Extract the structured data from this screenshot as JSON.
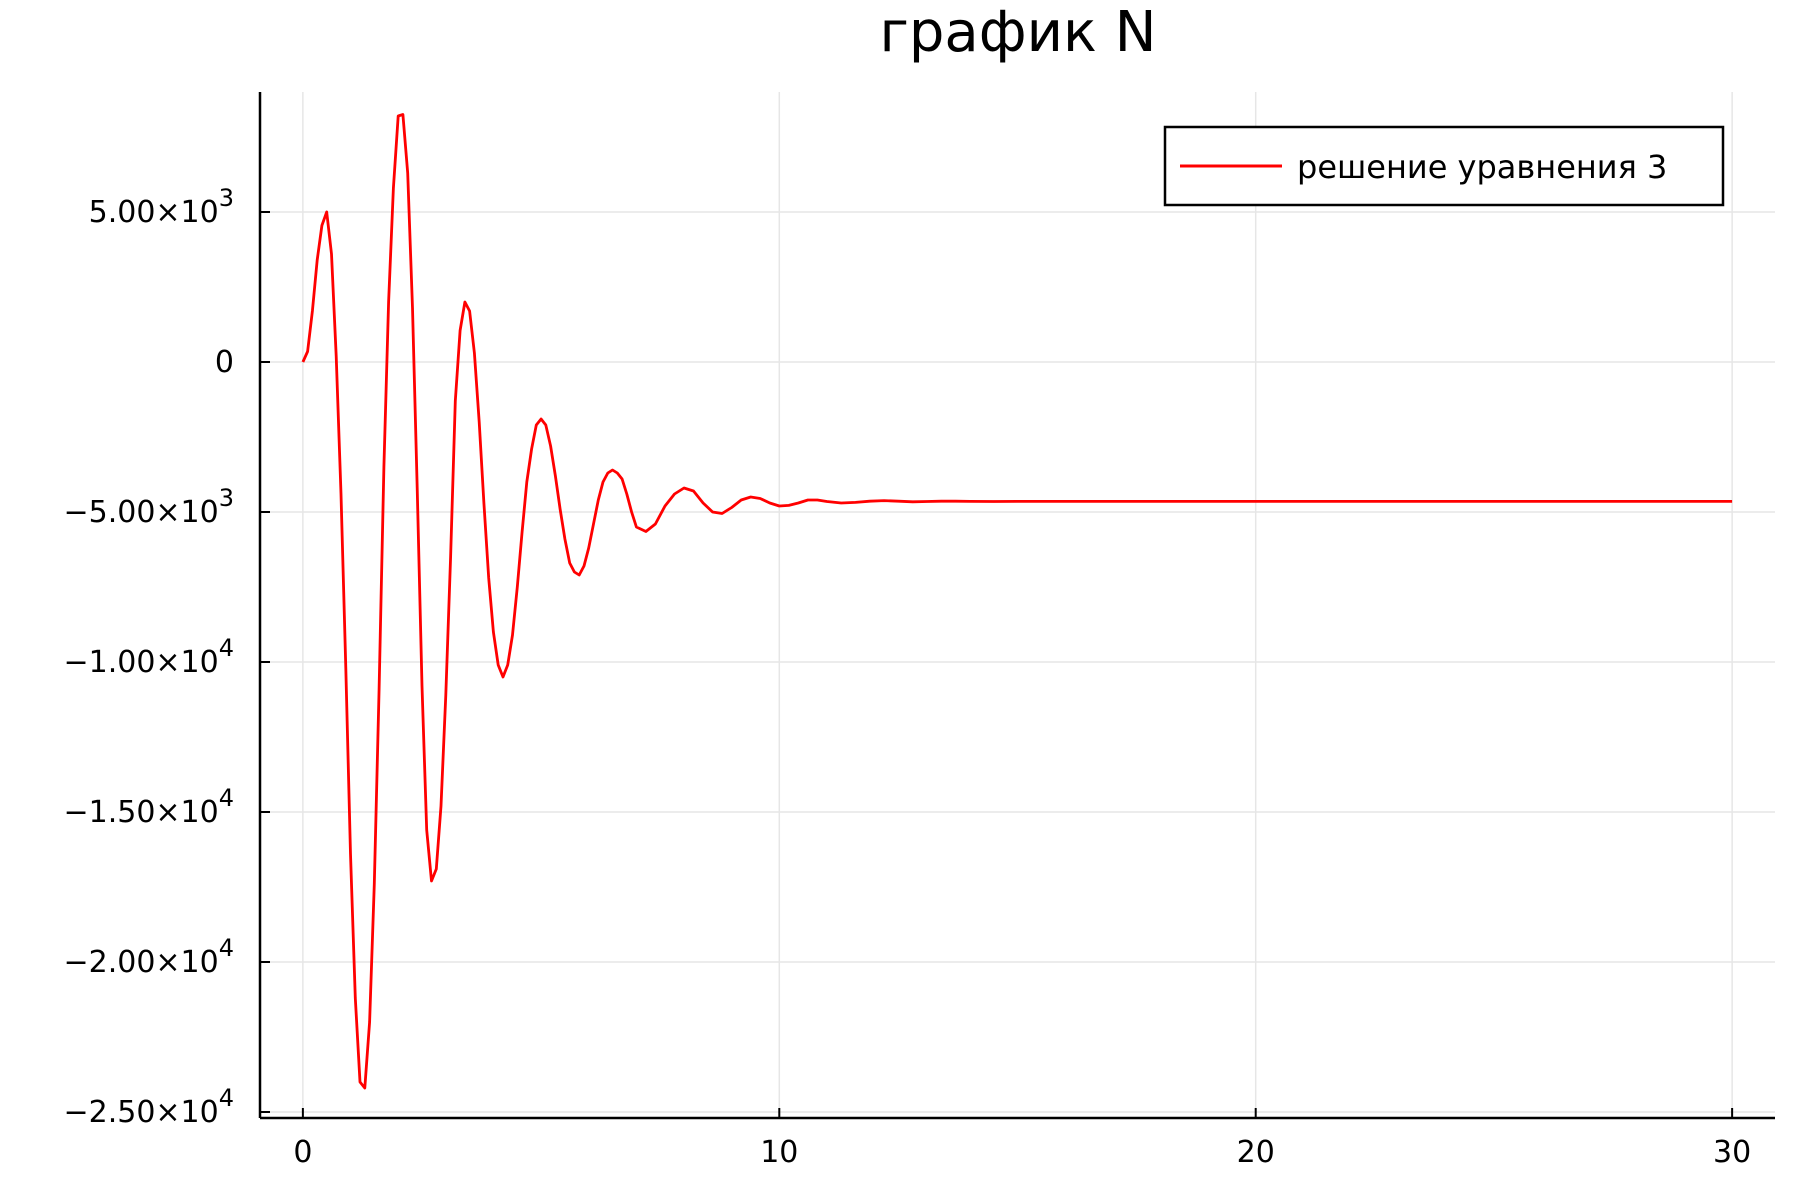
{
  "chart_data": {
    "type": "line",
    "title": "график N",
    "xlabel": "",
    "ylabel": "",
    "xlim": [
      -0.9,
      30.9
    ],
    "ylim": [
      -25200,
      9000
    ],
    "x_ticks": [
      {
        "value": 0,
        "label": "0"
      },
      {
        "value": 10,
        "label": "10"
      },
      {
        "value": 20,
        "label": "20"
      },
      {
        "value": 30,
        "label": "30"
      }
    ],
    "y_ticks": [
      {
        "value": 5000,
        "mantissa": "5.00×10",
        "exp": "3"
      },
      {
        "value": 0,
        "mantissa": "0",
        "exp": ""
      },
      {
        "value": -5000,
        "mantissa": "−5.00×10",
        "exp": "3"
      },
      {
        "value": -10000,
        "mantissa": "−1.00×10",
        "exp": "4"
      },
      {
        "value": -15000,
        "mantissa": "−1.50×10",
        "exp": "4"
      },
      {
        "value": -20000,
        "mantissa": "−2.00×10",
        "exp": "4"
      },
      {
        "value": -25000,
        "mantissa": "−2.50×10",
        "exp": "4"
      }
    ],
    "grid": true,
    "legend_position": "top-right",
    "series": [
      {
        "name": "решение уравнения 3",
        "color": "#ff0000",
        "x": [
          0,
          0.1,
          0.2,
          0.3,
          0.4,
          0.5,
          0.6,
          0.7,
          0.8,
          0.9,
          1.0,
          1.1,
          1.2,
          1.3,
          1.4,
          1.5,
          1.6,
          1.7,
          1.8,
          1.9,
          2.0,
          2.1,
          2.2,
          2.3,
          2.4,
          2.5,
          2.6,
          2.7,
          2.8,
          2.9,
          3.0,
          3.1,
          3.2,
          3.3,
          3.4,
          3.5,
          3.6,
          3.7,
          3.8,
          3.9,
          4.0,
          4.1,
          4.2,
          4.3,
          4.4,
          4.5,
          4.6,
          4.7,
          4.8,
          4.9,
          5.0,
          5.1,
          5.2,
          5.3,
          5.4,
          5.5,
          5.6,
          5.7,
          5.8,
          5.9,
          6.0,
          6.1,
          6.2,
          6.3,
          6.4,
          6.5,
          6.6,
          6.7,
          6.8,
          6.9,
          7.0,
          7.2,
          7.4,
          7.6,
          7.8,
          8.0,
          8.2,
          8.4,
          8.6,
          8.8,
          9.0,
          9.2,
          9.4,
          9.6,
          9.8,
          10.0,
          10.2,
          10.4,
          10.6,
          10.8,
          11.0,
          11.3,
          11.6,
          11.9,
          12.2,
          12.5,
          12.8,
          13.1,
          13.4,
          13.7,
          14.0,
          14.5,
          15.0,
          15.5,
          16.0,
          17.0,
          18.0,
          19.0,
          20.0,
          22.0,
          24.0,
          26.0,
          28.0,
          30.0
        ],
        "y": [
          0,
          350,
          1700,
          3400,
          4550,
          5000,
          3600,
          200,
          -4400,
          -10200,
          -16400,
          -21200,
          -24000,
          -24200,
          -22000,
          -17400,
          -10900,
          -3500,
          2000,
          5800,
          8200,
          8250,
          6300,
          1800,
          -4200,
          -10800,
          -15600,
          -17300,
          -16900,
          -14800,
          -11100,
          -6500,
          -1300,
          1050,
          2000,
          1700,
          300,
          -2000,
          -4700,
          -7200,
          -9000,
          -10100,
          -10500,
          -10100,
          -9100,
          -7500,
          -5700,
          -4000,
          -2900,
          -2100,
          -1900,
          -2100,
          -2800,
          -3800,
          -4900,
          -5900,
          -6700,
          -7000,
          -7100,
          -6800,
          -6200,
          -5400,
          -4600,
          -4000,
          -3700,
          -3600,
          -3700,
          -3900,
          -4400,
          -5000,
          -5500,
          -5650,
          -5400,
          -4800,
          -4400,
          -4200,
          -4300,
          -4700,
          -5000,
          -5050,
          -4850,
          -4600,
          -4500,
          -4550,
          -4700,
          -4800,
          -4780,
          -4700,
          -4600,
          -4600,
          -4650,
          -4700,
          -4680,
          -4640,
          -4620,
          -4640,
          -4660,
          -4650,
          -4640,
          -4640,
          -4645,
          -4650,
          -4645,
          -4645,
          -4645,
          -4645,
          -4645,
          -4645,
          -4645,
          -4645,
          -4645,
          -4645,
          -4645,
          -4645
        ]
      }
    ]
  }
}
